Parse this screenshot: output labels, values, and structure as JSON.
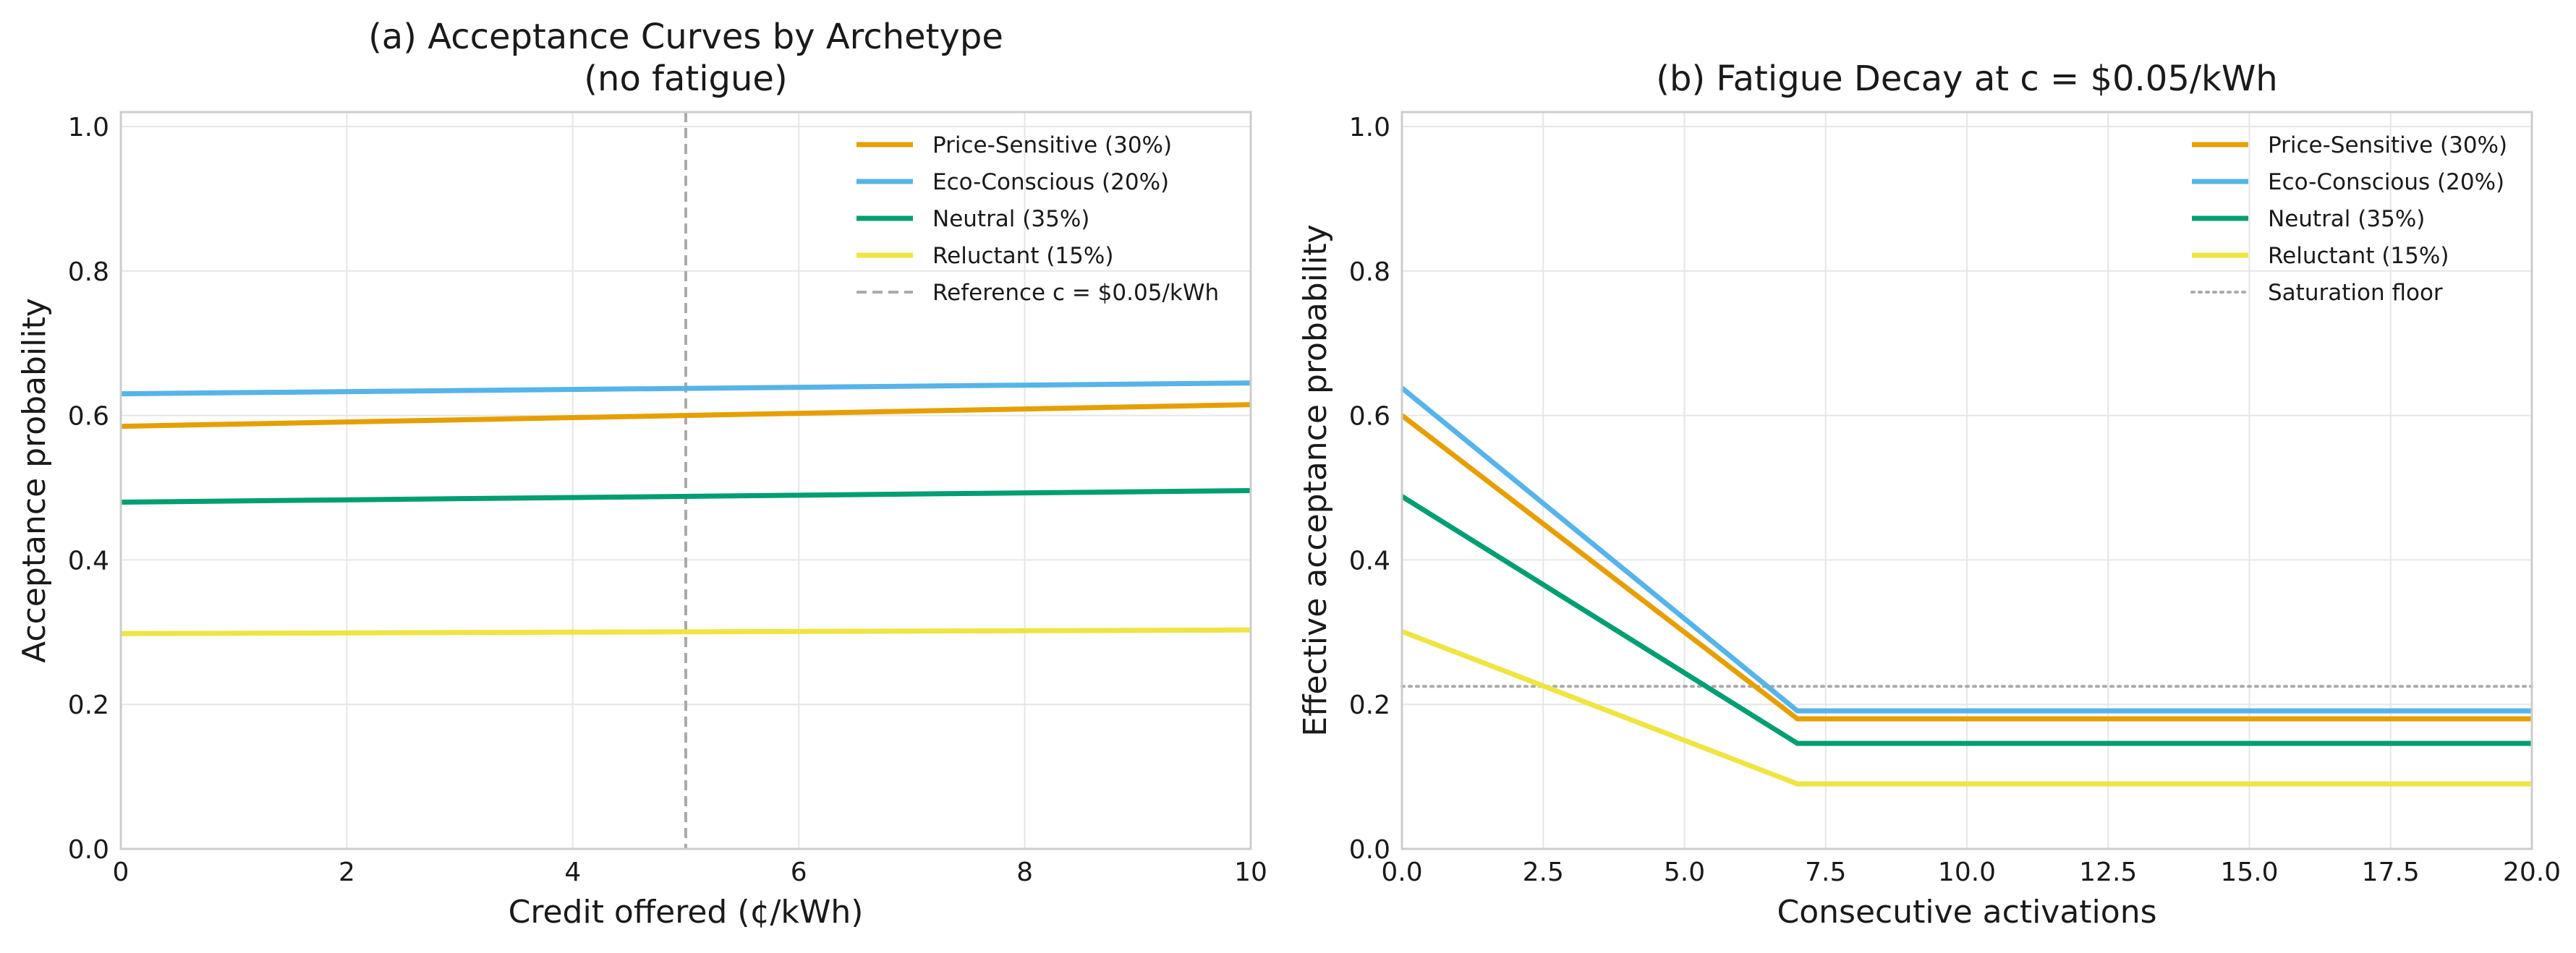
{
  "chart_data": [
    {
      "type": "line",
      "title": "(a) Acceptance Curves by Archetype\n(no fatigue)",
      "xlabel": "Credit offered (¢/kWh)",
      "ylabel": "Acceptance probability",
      "xlim": [
        0,
        10
      ],
      "ylim": [
        0,
        1.02
      ],
      "xticks": [
        "0",
        "2",
        "4",
        "6",
        "8",
        "10"
      ],
      "yticks": [
        "0.0",
        "0.2",
        "0.4",
        "0.6",
        "0.8",
        "1.0"
      ],
      "grid": true,
      "legend_position": "top-right",
      "series": [
        {
          "name": "Price-Sensitive (30%)",
          "color": "#E69F00",
          "x": [
            0,
            10
          ],
          "y": [
            0.585,
            0.615
          ]
        },
        {
          "name": "Eco-Conscious (20%)",
          "color": "#56B4E9",
          "x": [
            0,
            10
          ],
          "y": [
            0.63,
            0.645
          ]
        },
        {
          "name": "Neutral (35%)",
          "color": "#009E73",
          "x": [
            0,
            10
          ],
          "y": [
            0.48,
            0.496
          ]
        },
        {
          "name": "Reluctant (15%)",
          "color": "#F0E442",
          "x": [
            0,
            10
          ],
          "y": [
            0.298,
            0.303
          ]
        }
      ],
      "reference_line": {
        "name": "Reference c = $0.05/kWh",
        "x": 5,
        "style": "dashed",
        "color": "#aaaaaa"
      }
    },
    {
      "type": "line",
      "title": "(b) Fatigue Decay at c = $0.05/kWh",
      "xlabel": "Consecutive activations",
      "ylabel": "Effective acceptance probability",
      "xlim": [
        0,
        20
      ],
      "ylim": [
        0,
        1.02
      ],
      "xticks": [
        "0.0",
        "2.5",
        "5.0",
        "7.5",
        "10.0",
        "12.5",
        "15.0",
        "17.5",
        "20.0"
      ],
      "yticks": [
        "0.0",
        "0.2",
        "0.4",
        "0.6",
        "0.8",
        "1.0"
      ],
      "grid": true,
      "legend_position": "top-right",
      "series": [
        {
          "name": "Price-Sensitive (30%)",
          "color": "#E69F00",
          "x": [
            0,
            7,
            20
          ],
          "y": [
            0.6,
            0.18,
            0.18
          ]
        },
        {
          "name": "Eco-Conscious (20%)",
          "color": "#56B4E9",
          "x": [
            0,
            7,
            20
          ],
          "y": [
            0.638,
            0.191,
            0.191
          ]
        },
        {
          "name": "Neutral (35%)",
          "color": "#009E73",
          "x": [
            0,
            7,
            20
          ],
          "y": [
            0.488,
            0.146,
            0.146
          ]
        },
        {
          "name": "Reluctant (15%)",
          "color": "#F0E442",
          "x": [
            0,
            7,
            20
          ],
          "y": [
            0.301,
            0.09,
            0.09
          ]
        }
      ],
      "reference_line": {
        "name": "Saturation floor",
        "y": 0.225,
        "style": "dotted",
        "color": "#aaaaaa"
      }
    }
  ]
}
